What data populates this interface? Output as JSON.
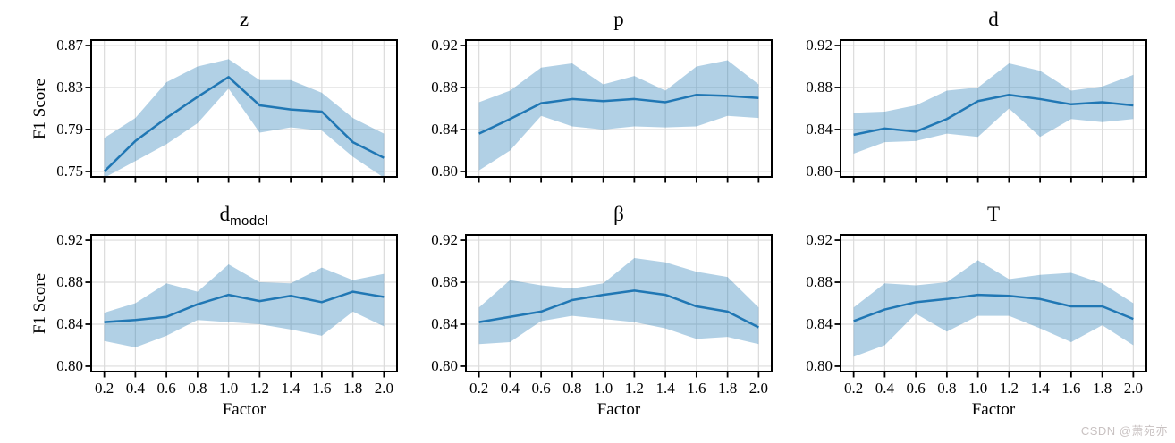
{
  "watermark": {
    "text": "CSDN @萧宛亦",
    "color": "#c9c2c2"
  },
  "chart_data": {
    "type": "line",
    "description": "2x3 grid of line charts with shaded confidence bands showing F1 Score vs scaling Factor for six hyperparameters",
    "x": [
      0.2,
      0.4,
      0.6,
      0.8,
      1.0,
      1.2,
      1.4,
      1.6,
      1.8,
      2.0
    ],
    "xtick_labels": [
      "0.2",
      "0.4",
      "0.6",
      "0.8",
      "1.0",
      "1.2",
      "1.4",
      "1.6",
      "1.8",
      "2.0"
    ],
    "xlim": [
      0.11,
      2.09
    ],
    "xlabel": "Factor",
    "ylabel": "F1 Score",
    "grid": true,
    "legend": "none",
    "colors": {
      "line": "#2077b4",
      "band": "rgba(31,119,180,0.35)",
      "grid": "#dcdcdc",
      "spine": "#000000"
    },
    "panels": [
      {
        "title_main": "z",
        "title_sub": "",
        "ylim": [
          0.744,
          0.876
        ],
        "yticks": [
          0.75,
          0.79,
          0.83,
          0.87
        ],
        "ytick_labels": [
          "0.75",
          "0.79",
          "0.83",
          "0.87"
        ],
        "mean": [
          0.75,
          0.779,
          0.801,
          0.821,
          0.84,
          0.813,
          0.809,
          0.807,
          0.778,
          0.763
        ],
        "band_upper": [
          0.782,
          0.801,
          0.835,
          0.85,
          0.857,
          0.837,
          0.837,
          0.825,
          0.801,
          0.786
        ],
        "band_lower": [
          0.744,
          0.76,
          0.776,
          0.796,
          0.829,
          0.787,
          0.792,
          0.789,
          0.764,
          0.744
        ]
      },
      {
        "title_main": "p",
        "title_sub": "",
        "ylim": [
          0.794,
          0.926
        ],
        "yticks": [
          0.8,
          0.84,
          0.88,
          0.92
        ],
        "ytick_labels": [
          "0.80",
          "0.84",
          "0.88",
          "0.92"
        ],
        "mean": [
          0.836,
          0.85,
          0.865,
          0.869,
          0.867,
          0.869,
          0.866,
          0.873,
          0.872,
          0.87
        ],
        "band_upper": [
          0.866,
          0.877,
          0.899,
          0.903,
          0.883,
          0.891,
          0.877,
          0.9,
          0.906,
          0.883
        ],
        "band_lower": [
          0.801,
          0.82,
          0.853,
          0.843,
          0.84,
          0.843,
          0.842,
          0.843,
          0.853,
          0.851
        ]
      },
      {
        "title_main": "d",
        "title_sub": "",
        "ylim": [
          0.794,
          0.926
        ],
        "yticks": [
          0.8,
          0.84,
          0.88,
          0.92
        ],
        "ytick_labels": [
          "0.80",
          "0.84",
          "0.88",
          "0.92"
        ],
        "mean": [
          0.835,
          0.841,
          0.838,
          0.85,
          0.867,
          0.873,
          0.869,
          0.864,
          0.866,
          0.863
        ],
        "band_upper": [
          0.856,
          0.857,
          0.863,
          0.877,
          0.88,
          0.903,
          0.896,
          0.877,
          0.881,
          0.892
        ],
        "band_lower": [
          0.817,
          0.828,
          0.829,
          0.836,
          0.833,
          0.86,
          0.833,
          0.85,
          0.847,
          0.85
        ]
      },
      {
        "title_main": "d",
        "title_sub": "model",
        "ylim": [
          0.794,
          0.926
        ],
        "yticks": [
          0.8,
          0.84,
          0.88,
          0.92
        ],
        "ytick_labels": [
          "0.80",
          "0.84",
          "0.88",
          "0.92"
        ],
        "mean": [
          0.842,
          0.844,
          0.847,
          0.859,
          0.868,
          0.862,
          0.867,
          0.861,
          0.871,
          0.866
        ],
        "band_upper": [
          0.851,
          0.86,
          0.879,
          0.871,
          0.897,
          0.88,
          0.879,
          0.894,
          0.882,
          0.888
        ],
        "band_lower": [
          0.824,
          0.818,
          0.829,
          0.844,
          0.842,
          0.84,
          0.835,
          0.829,
          0.852,
          0.838
        ]
      },
      {
        "title_main": "β",
        "title_sub": "",
        "ylim": [
          0.794,
          0.926
        ],
        "yticks": [
          0.8,
          0.84,
          0.88,
          0.92
        ],
        "ytick_labels": [
          "0.80",
          "0.84",
          "0.88",
          "0.92"
        ],
        "mean": [
          0.842,
          0.847,
          0.852,
          0.863,
          0.868,
          0.872,
          0.868,
          0.857,
          0.852,
          0.837
        ],
        "band_upper": [
          0.856,
          0.882,
          0.877,
          0.874,
          0.879,
          0.903,
          0.899,
          0.89,
          0.885,
          0.856
        ],
        "band_lower": [
          0.821,
          0.823,
          0.843,
          0.848,
          0.845,
          0.842,
          0.836,
          0.826,
          0.828,
          0.821
        ]
      },
      {
        "title_main": "T",
        "title_sub": "",
        "ylim": [
          0.794,
          0.926
        ],
        "yticks": [
          0.8,
          0.84,
          0.88,
          0.92
        ],
        "ytick_labels": [
          "0.80",
          "0.84",
          "0.88",
          "0.92"
        ],
        "mean": [
          0.843,
          0.854,
          0.861,
          0.864,
          0.868,
          0.867,
          0.864,
          0.857,
          0.857,
          0.845
        ],
        "band_upper": [
          0.856,
          0.879,
          0.877,
          0.88,
          0.901,
          0.883,
          0.887,
          0.889,
          0.879,
          0.86
        ],
        "band_lower": [
          0.809,
          0.82,
          0.85,
          0.833,
          0.848,
          0.848,
          0.836,
          0.823,
          0.839,
          0.82
        ]
      }
    ]
  }
}
